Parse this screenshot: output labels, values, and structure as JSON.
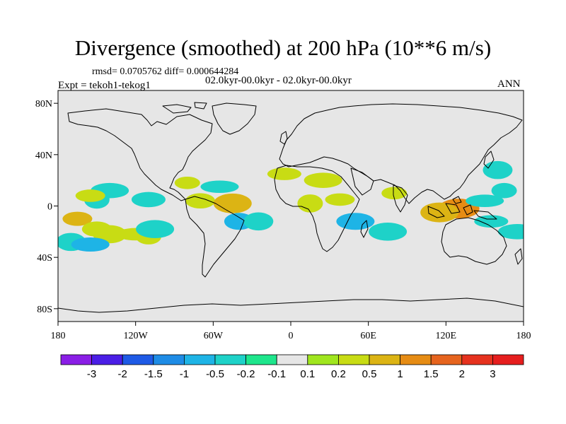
{
  "figure": {
    "title": "Divergence (smoothed) at 200 hPa (10**6 m/s)",
    "stats": "rmsd= 0.0705762 diff= 0.000644284",
    "subtitle": "02.0kyr-00.0kyr - 02.0kyr-00.0kyr",
    "experiment": "Expt = tekoh1-tekog1",
    "season": "ANN"
  },
  "axes": {
    "x_ticks": [
      "180",
      "120W",
      "60W",
      "0",
      "60E",
      "120E",
      "180"
    ],
    "y_ticks": [
      "80N",
      "40N",
      "0",
      "40S",
      "80S"
    ]
  },
  "colorbar": {
    "labels": [
      "-3",
      "-2",
      "-1.5",
      "-1",
      "-0.5",
      "-0.2",
      "-0.1",
      "0.1",
      "0.2",
      "0.5",
      "1",
      "1.5",
      "2",
      "3"
    ],
    "colors": [
      "#8a1ee6",
      "#4a1ee6",
      "#1e5ae6",
      "#1e8ce6",
      "#1eb4e6",
      "#1ed2c8",
      "#1ee68c",
      "#e6e6e6",
      "#a0e61e",
      "#c8dc14",
      "#dcb414",
      "#e68c14",
      "#e6641e",
      "#e6321e",
      "#e61e1e"
    ]
  },
  "colors": {
    "map_background": "#e6e6e6",
    "coast": "#000000"
  },
  "anomalies": [
    {
      "lon": -165,
      "lat": -10,
      "sign": "positive",
      "level": 0.5
    },
    {
      "lon": -150,
      "lat": -18,
      "sign": "positive",
      "level": 0.2
    },
    {
      "lon": -140,
      "lat": -22,
      "sign": "positive",
      "level": 0.2
    },
    {
      "lon": -120,
      "lat": -22,
      "sign": "positive",
      "level": 0.2
    },
    {
      "lon": -110,
      "lat": -24,
      "sign": "positive",
      "level": 0.2
    },
    {
      "lon": -170,
      "lat": -28,
      "sign": "negative",
      "level": -0.2
    },
    {
      "lon": -155,
      "lat": -30,
      "sign": "negative",
      "level": -0.5
    },
    {
      "lon": -140,
      "lat": 12,
      "sign": "negative",
      "level": -0.2
    },
    {
      "lon": -150,
      "lat": 5,
      "sign": "negative",
      "level": -0.2
    },
    {
      "lon": -155,
      "lat": 8,
      "sign": "positive",
      "level": 0.2
    },
    {
      "lon": -110,
      "lat": 5,
      "sign": "negative",
      "level": -0.2
    },
    {
      "lon": -105,
      "lat": -18,
      "sign": "negative",
      "level": -0.2
    },
    {
      "lon": -80,
      "lat": 18,
      "sign": "positive",
      "level": 0.2
    },
    {
      "lon": -70,
      "lat": 4,
      "sign": "positive",
      "level": 0.2
    },
    {
      "lon": -45,
      "lat": 2,
      "sign": "positive",
      "level": 0.5
    },
    {
      "lon": -55,
      "lat": 15,
      "sign": "negative",
      "level": -0.2
    },
    {
      "lon": -40,
      "lat": -12,
      "sign": "negative",
      "level": -0.5
    },
    {
      "lon": -25,
      "lat": -12,
      "sign": "negative",
      "level": -0.2
    },
    {
      "lon": -5,
      "lat": 25,
      "sign": "positive",
      "level": 0.2
    },
    {
      "lon": 25,
      "lat": 20,
      "sign": "positive",
      "level": 0.2
    },
    {
      "lon": 15,
      "lat": 2,
      "sign": "positive",
      "level": 0.2
    },
    {
      "lon": 38,
      "lat": 5,
      "sign": "positive",
      "level": 0.2
    },
    {
      "lon": 50,
      "lat": -12,
      "sign": "negative",
      "level": -0.5
    },
    {
      "lon": 75,
      "lat": -20,
      "sign": "negative",
      "level": -0.2
    },
    {
      "lon": 80,
      "lat": 10,
      "sign": "positive",
      "level": 0.2
    },
    {
      "lon": 130,
      "lat": -2,
      "sign": "positive",
      "level": 1
    },
    {
      "lon": 115,
      "lat": -5,
      "sign": "positive",
      "level": 0.5
    },
    {
      "lon": 150,
      "lat": 4,
      "sign": "negative",
      "level": -0.2
    },
    {
      "lon": 165,
      "lat": 12,
      "sign": "negative",
      "level": -0.2
    },
    {
      "lon": 160,
      "lat": 28,
      "sign": "negative",
      "level": -0.2
    },
    {
      "lon": 155,
      "lat": -12,
      "sign": "negative",
      "level": -0.2
    },
    {
      "lon": 175,
      "lat": -20,
      "sign": "negative",
      "level": -0.2
    }
  ]
}
